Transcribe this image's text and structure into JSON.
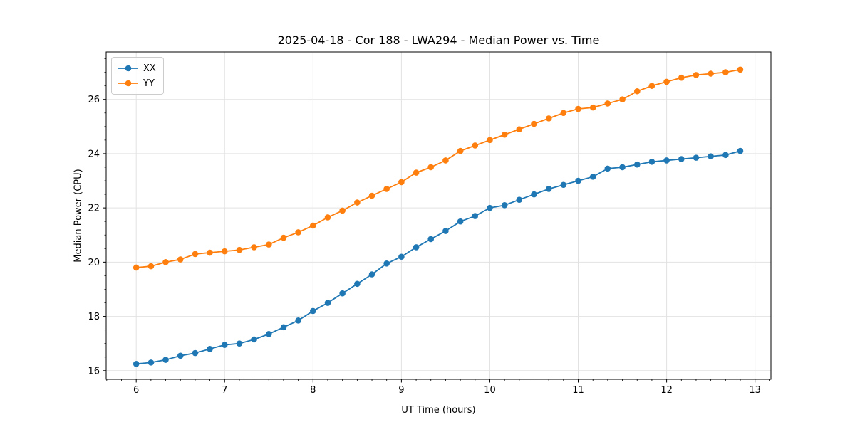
{
  "chart_data": {
    "type": "line",
    "title": "2025-04-18 - Cor 188 - LWA294 - Median Power vs. Time",
    "xlabel": "UT Time (hours)",
    "ylabel": "Median Power (CPU)",
    "xlim": [
      5.66,
      13.18
    ],
    "ylim": [
      15.68,
      27.75
    ],
    "xticks": [
      6,
      7,
      8,
      9,
      10,
      11,
      12,
      13
    ],
    "yticks": [
      16,
      18,
      20,
      22,
      24,
      26
    ],
    "x_minor_divisions": 6,
    "y_minor_divisions": 4,
    "grid": true,
    "grid_color": "#e2e2e2",
    "legend_position": "upper left",
    "x": [
      6.0,
      6.167,
      6.333,
      6.5,
      6.667,
      6.833,
      7.0,
      7.167,
      7.333,
      7.5,
      7.667,
      7.833,
      8.0,
      8.167,
      8.333,
      8.5,
      8.667,
      8.833,
      9.0,
      9.167,
      9.333,
      9.5,
      9.667,
      9.833,
      10.0,
      10.167,
      10.333,
      10.5,
      10.667,
      10.833,
      11.0,
      11.167,
      11.333,
      11.5,
      11.667,
      11.833,
      12.0,
      12.167,
      12.333,
      12.5,
      12.667,
      12.833
    ],
    "series": [
      {
        "name": "XX",
        "color": "#1f77b4",
        "values": [
          16.25,
          16.3,
          16.4,
          16.55,
          16.65,
          16.8,
          16.95,
          17.0,
          17.15,
          17.35,
          17.6,
          17.85,
          18.2,
          18.5,
          18.85,
          19.2,
          19.55,
          19.95,
          20.2,
          20.55,
          20.85,
          21.15,
          21.5,
          21.7,
          22.0,
          22.1,
          22.3,
          22.5,
          22.7,
          22.85,
          23.0,
          23.15,
          23.45,
          23.5,
          23.6,
          23.7,
          23.75,
          23.8,
          23.85,
          23.9,
          23.95,
          24.1
        ]
      },
      {
        "name": "YY",
        "color": "#ff7f0e",
        "values": [
          19.8,
          19.85,
          20.0,
          20.1,
          20.3,
          20.35,
          20.4,
          20.45,
          20.55,
          20.65,
          20.9,
          21.1,
          21.35,
          21.65,
          21.9,
          22.2,
          22.45,
          22.7,
          22.95,
          23.3,
          23.5,
          23.75,
          24.1,
          24.3,
          24.5,
          24.7,
          24.9,
          25.1,
          25.3,
          25.5,
          25.65,
          25.7,
          25.85,
          26.0,
          26.3,
          26.5,
          26.65,
          26.8,
          26.9,
          26.95,
          27.0,
          27.1
        ]
      }
    ]
  }
}
